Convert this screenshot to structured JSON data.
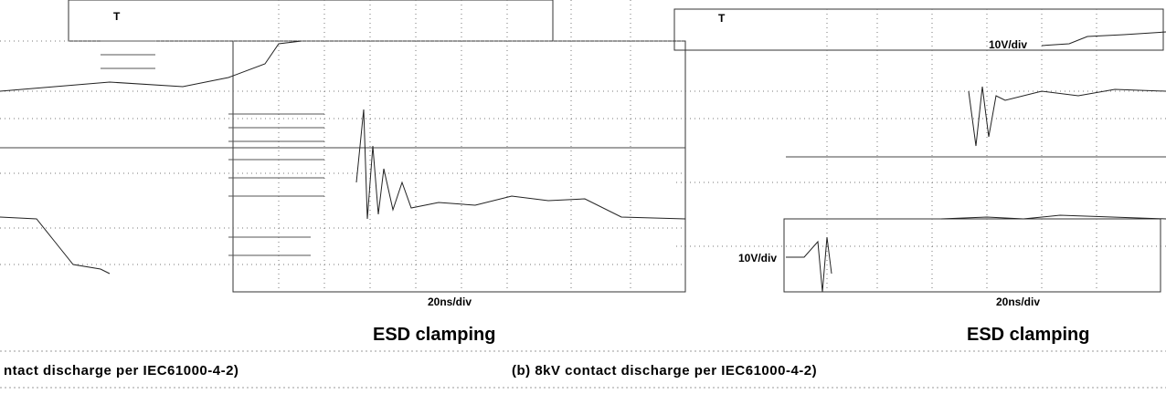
{
  "panels": [
    {
      "time_scale": "20ns/div",
      "label": "ESD clamping",
      "caption": "ntact discharge per IEC61000-4-2)"
    },
    {
      "volt_scale_top": "10V/div",
      "volt_scale_bottom": "10V/div",
      "time_scale": "20ns/div",
      "label": "ESD clamping",
      "caption": "(b) 8kV contact discharge per IEC61000-4-2)"
    }
  ]
}
